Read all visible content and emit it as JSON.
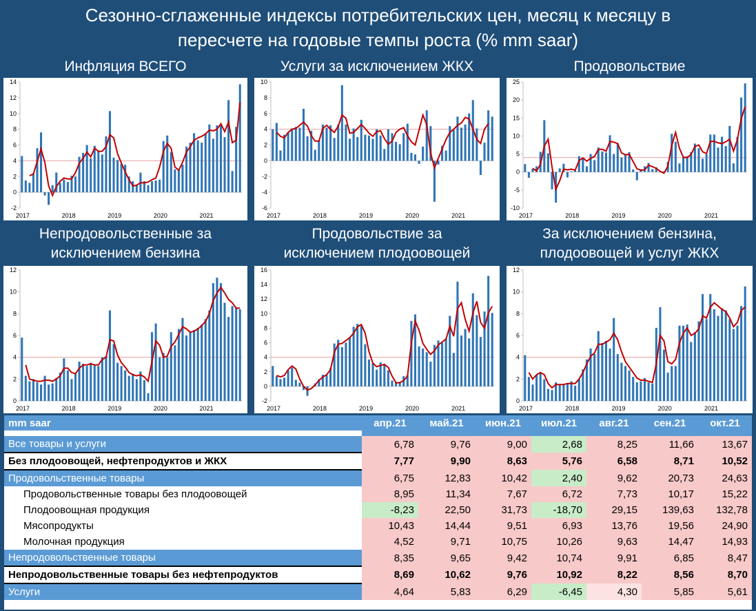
{
  "header": {
    "title_line1": "Сезонно-сглаженные индексы потребительских цен, месяц к месяцу в",
    "title_line2": "пересчете на годовые темпы роста (% mm saar)"
  },
  "chart_data": [
    {
      "type": "bar",
      "title": "Инфляция ВСЕГО",
      "xlabels": [
        "2017",
        "2018",
        "2019",
        "2020",
        "2021"
      ],
      "yticks": [
        -2,
        0,
        2,
        4,
        6,
        8,
        10,
        12,
        14
      ],
      "ylim": [
        -2,
        14
      ],
      "ref_line": 4,
      "series": [
        {
          "values": [
            4.6,
            1.5,
            1.2,
            2.4,
            5.6,
            7.6,
            -0.4,
            -1.6,
            0.9,
            2.5,
            1.2,
            1.6,
            1.3,
            2.1,
            2.0,
            4.5,
            5.0,
            6.0,
            4.3,
            5.9,
            5.3,
            4.8,
            7.1,
            10.3,
            4.4,
            4.1,
            3.6,
            3.5,
            2.0,
            1.4,
            0.9,
            2.5,
            1.4,
            0.9,
            1.4,
            1.5,
            1.6,
            6.5,
            7.2,
            5.1,
            2.9,
            2.8,
            3.5,
            5.8,
            6.3,
            7.5,
            6.6,
            6.3,
            7.5,
            8.6,
            6.8,
            8.5,
            8.6,
            7.0,
            11.7,
            2.7,
            8.3,
            13.7
          ]
        },
        {
          "values": [
            null,
            null,
            2.1,
            2.3,
            3.9,
            5.5,
            3.8,
            0.8,
            -0.4,
            0.7,
            1.4,
            1.8,
            1.7,
            1.7,
            2.5,
            3.7,
            4.3,
            5.1,
            4.5,
            5.6,
            5.2,
            5.2,
            5.8,
            7.3,
            6.9,
            4.9,
            3.7,
            2.6,
            1.6,
            0.8,
            0.9,
            1.2,
            1.2,
            1.3,
            1.6,
            1.8,
            3.2,
            5.2,
            6.2,
            5.6,
            3.2,
            2.8,
            3.8,
            5.1,
            5.8,
            6.6,
            6.9,
            7.1,
            7.4,
            7.9,
            7.8,
            8.0,
            8.7,
            7.7,
            8.9,
            6.3,
            6.6,
            11.4
          ]
        }
      ]
    },
    {
      "type": "bar",
      "title": "Услуги за исключением ЖКХ",
      "xlabels": [
        "2017",
        "2018",
        "2019",
        "2020",
        "2021"
      ],
      "yticks": [
        -6,
        -4,
        -2,
        0,
        2,
        4,
        6,
        8,
        10
      ],
      "ylim": [
        -6,
        10
      ],
      "ref_line": 4,
      "series": [
        {
          "values": [
            4.0,
            4.8,
            1.3,
            3.3,
            3.6,
            4.1,
            4.3,
            4.2,
            6.6,
            3.1,
            3.8,
            1.4,
            2.6,
            4.6,
            4.2,
            4.5,
            2.9,
            4.6,
            9.6,
            4.6,
            2.8,
            4.1,
            3.0,
            5.2,
            3.3,
            3.2,
            2.8,
            4.0,
            3.2,
            1.5,
            4.0,
            3.5,
            2.4,
            2.1,
            3.5,
            4.7,
            1.0,
            0.8,
            -0.4,
            1.8,
            6.4,
            4.4,
            -5.2,
            -0.5,
            1.9,
            1.3,
            4.4,
            3.9,
            5.6,
            4.2,
            4.6,
            6.0,
            7.7,
            4.1,
            -1.8,
            2.3,
            6.4,
            5.6
          ]
        },
        {
          "values": [
            null,
            3.6,
            3.1,
            2.9,
            3.6,
            4.0,
            4.1,
            4.5,
            4.9,
            4.4,
            3.2,
            2.5,
            2.5,
            4.1,
            4.5,
            4.0,
            3.6,
            4.4,
            5.8,
            5.4,
            3.5,
            3.6,
            4.1,
            4.6,
            4.1,
            3.5,
            3.1,
            3.7,
            3.8,
            2.8,
            2.1,
            2.5,
            3.6,
            4.0,
            4.2,
            3.2,
            2.4,
            2.0,
            3.9,
            5.8,
            4.6,
            1.0,
            -0.9,
            0.3,
            1.5,
            2.7,
            3.6,
            4.0,
            4.5,
            4.8,
            5.5,
            5.3,
            4.0,
            2.7,
            2.2,
            4.0,
            4.7
          ]
        }
      ]
    },
    {
      "type": "bar",
      "title": "Продовольствие",
      "xlabels": [
        "2017",
        "2018",
        "2019",
        "2020",
        "2021"
      ],
      "yticks": [
        -10,
        -5,
        0,
        5,
        10,
        15,
        20,
        25
      ],
      "ylim": [
        -10,
        25
      ],
      "ref_line": 4,
      "series": [
        {
          "values": [
            2.2,
            -1.6,
            0.9,
            1.6,
            5.6,
            14.4,
            5.2,
            -4.8,
            -8.5,
            1.0,
            2.3,
            -1.5,
            0.2,
            0.4,
            4.4,
            3.8,
            1.6,
            5.0,
            3.3,
            6.8,
            5.7,
            5.4,
            10.2,
            5.0,
            8.0,
            4.0,
            5.0,
            5.5,
            0.7,
            -2.3,
            0.8,
            1.6,
            2.5,
            0.8,
            1.3,
            0.2,
            0.2,
            2.8,
            10.6,
            8.4,
            2.4,
            4.1,
            4.4,
            5.5,
            7.9,
            6.6,
            3.7,
            4.9,
            10.4,
            10.4,
            6.8,
            9.8,
            7.2,
            12.8,
            2.4,
            9.7,
            20.7,
            24.6
          ]
        },
        {
          "values": [
            null,
            null,
            1.0,
            0.3,
            2.1,
            7.2,
            9.1,
            1.4,
            -4.8,
            -2.4,
            0.8,
            0.6,
            0.8,
            0.5,
            3.2,
            3.9,
            3.0,
            3.8,
            4.3,
            6.3,
            6.3,
            5.8,
            8.5,
            8.3,
            7.9,
            5.3,
            4.8,
            4.9,
            2.9,
            0.9,
            0.5,
            0.6,
            1.9,
            1.5,
            1.0,
            0.2,
            -0.3,
            1.6,
            7.3,
            11.0,
            6.6,
            4.1,
            4.0,
            4.9,
            7.1,
            7.5,
            5.6,
            5.1,
            8.5,
            8.5,
            8.1,
            7.9,
            8.4,
            9.1,
            5.8,
            9.0,
            14.8,
            18.1
          ]
        }
      ]
    },
    {
      "type": "bar",
      "title": "Непродовольственные за исключением бензина",
      "xlabels": [
        "2017",
        "2018",
        "2019",
        "2020",
        "2021"
      ],
      "yticks": [
        0,
        2,
        4,
        6,
        8,
        10,
        12
      ],
      "ylim": [
        0,
        12
      ],
      "ref_line": 4,
      "series": [
        {
          "values": [
            5.8,
            2.3,
            1.8,
            2.0,
            1.7,
            1.5,
            2.3,
            1.5,
            1.6,
            2.1,
            2.6,
            3.9,
            2.8,
            2.0,
            2.5,
            3.6,
            3.4,
            3.2,
            3.5,
            3.3,
            3.2,
            4.0,
            4.1,
            8.3,
            5.2,
            3.5,
            3.2,
            2.8,
            2.3,
            2.5,
            2.0,
            2.7,
            1.9,
            0.7,
            6.3,
            7.1,
            4.0,
            4.4,
            4.0,
            6.3,
            5.1,
            6.6,
            7.6,
            6.0,
            6.3,
            6.5,
            6.7,
            7.0,
            7.5,
            8.3,
            10.8,
            11.3,
            10.8,
            9.0,
            7.7,
            8.7,
            8.6,
            8.4
          ]
        },
        {
          "values": [
            null,
            3.3,
            2.0,
            1.9,
            1.8,
            1.8,
            1.9,
            1.9,
            1.8,
            2.0,
            2.3,
            3.0,
            3.0,
            2.6,
            2.5,
            3.0,
            3.3,
            3.3,
            3.4,
            3.3,
            3.3,
            3.8,
            4.0,
            5.6,
            5.5,
            4.2,
            3.5,
            3.1,
            2.6,
            2.4,
            2.3,
            2.4,
            2.2,
            1.8,
            3.6,
            5.5,
            5.1,
            4.0,
            4.1,
            5.0,
            5.4,
            6.1,
            6.8,
            6.6,
            6.3,
            6.4,
            6.6,
            6.9,
            7.3,
            8.0,
            9.2,
            9.9,
            10.4,
            9.9,
            9.3,
            9.0,
            8.5,
            8.5
          ]
        }
      ]
    },
    {
      "type": "bar",
      "title": "Продовольствие за исключением плодоовощей",
      "xlabels": [
        "2017",
        "2018",
        "2019",
        "2020",
        "2021"
      ],
      "yticks": [
        -2,
        0,
        2,
        4,
        6,
        8,
        10,
        12,
        14,
        16
      ],
      "ylim": [
        -2,
        16
      ],
      "ref_line": 4,
      "series": [
        {
          "values": [
            2.8,
            1.4,
            1.0,
            1.2,
            2.2,
            2.6,
            0.9,
            0.5,
            -0.5,
            -1.3,
            0.0,
            0.4,
            1.0,
            1.6,
            1.6,
            2.5,
            5.9,
            6.4,
            5.4,
            6.0,
            6.8,
            8.2,
            8.6,
            8.3,
            5.8,
            3.7,
            3.2,
            2.3,
            3.3,
            3.1,
            2.2,
            0.8,
            0.6,
            0.6,
            1.4,
            1.5,
            9.0,
            9.9,
            5.5,
            5.2,
            4.7,
            3.4,
            5.7,
            6.3,
            6.0,
            6.6,
            9.7,
            4.6,
            14.4,
            7.0,
            7.9,
            6.6,
            12.8,
            9.8,
            6.8,
            10.3,
            15.2,
            10.1
          ]
        },
        {
          "values": [
            null,
            1.5,
            1.3,
            1.5,
            2.3,
            2.8,
            2.4,
            1.0,
            0.0,
            -0.5,
            -0.3,
            0.2,
            0.8,
            1.3,
            1.6,
            2.3,
            4.7,
            5.8,
            5.9,
            6.3,
            6.7,
            7.3,
            8.2,
            8.5,
            7.3,
            4.8,
            3.2,
            2.7,
            2.9,
            3.0,
            2.6,
            1.4,
            0.5,
            0.5,
            0.8,
            1.4,
            6.0,
            9.0,
            7.7,
            5.9,
            5.1,
            4.4,
            4.9,
            5.7,
            6.1,
            6.5,
            8.3,
            6.9,
            10.7,
            11.5,
            9.2,
            7.6,
            10.1,
            11.7,
            8.8,
            8.0,
            10.1,
            11.0
          ]
        }
      ]
    },
    {
      "type": "bar",
      "title": "За исключением бензина, плодоовощей и услуг ЖКХ",
      "xlabels": [
        "2017",
        "2018",
        "2019",
        "2020",
        "2021"
      ],
      "yticks": [
        0,
        2,
        4,
        6,
        8,
        10,
        12
      ],
      "ylim": [
        0,
        12
      ],
      "ref_line": 4,
      "series": [
        {
          "values": [
            4.2,
            2.2,
            1.5,
            2.4,
            2.6,
            2.0,
            1.1,
            1.0,
            1.7,
            1.5,
            1.5,
            1.6,
            1.8,
            1.4,
            2.0,
            2.9,
            3.8,
            4.8,
            4.3,
            6.4,
            5.3,
            5.5,
            4.8,
            7.6,
            4.3,
            3.5,
            3.2,
            2.8,
            2.2,
            1.7,
            1.8,
            2.1,
            1.7,
            1.6,
            6.7,
            8.6,
            4.7,
            2.6,
            3.2,
            3.2,
            6.9,
            6.9,
            7.0,
            5.4,
            6.3,
            7.3,
            9.8,
            7.5,
            9.8,
            8.4,
            7.8,
            8.5,
            8.3,
            7.5,
            6.6,
            6.9,
            8.7,
            10.5
          ]
        },
        {
          "values": [
            null,
            2.6,
            2.0,
            2.4,
            2.6,
            2.4,
            1.6,
            1.2,
            1.5,
            1.5,
            1.5,
            1.6,
            1.6,
            1.6,
            2.0,
            2.6,
            3.4,
            4.1,
            4.4,
            5.2,
            5.2,
            5.4,
            5.6,
            6.2,
            5.6,
            4.5,
            3.6,
            3.1,
            2.6,
            2.1,
            1.9,
            1.9,
            1.8,
            1.7,
            3.4,
            6.0,
            5.5,
            3.6,
            3.4,
            3.8,
            5.3,
            6.2,
            6.7,
            6.0,
            6.2,
            6.6,
            7.8,
            7.6,
            8.6,
            9.0,
            8.7,
            8.4,
            8.2,
            7.6,
            6.8,
            7.2,
            8.3,
            8.6
          ]
        }
      ]
    }
  ],
  "table": {
    "corner_label": "mm saar",
    "columns": [
      "апр.21",
      "май.21",
      "июн.21",
      "июл.21",
      "авг.21",
      "сен.21",
      "окт.21"
    ],
    "rows": [
      {
        "label": "Все товары и услуги",
        "style": "band",
        "values": [
          "6,78",
          "9,76",
          "9,00",
          "2,68",
          "8,25",
          "11,66",
          "13,67"
        ],
        "colors": [
          "red",
          "red",
          "red",
          "green",
          "red",
          "red",
          "red"
        ]
      },
      {
        "label": "Без плодоовощей, нефтепродуктов и ЖКХ",
        "style": "bold",
        "values": [
          "7,77",
          "9,90",
          "8,63",
          "5,76",
          "6,58",
          "8,71",
          "10,52"
        ],
        "colors": [
          "red",
          "red",
          "red",
          "red",
          "red",
          "red",
          "red"
        ]
      },
      {
        "label": "Продовольственные товары",
        "style": "band",
        "values": [
          "6,75",
          "12,83",
          "10,42",
          "2,40",
          "9,62",
          "20,73",
          "24,63"
        ],
        "colors": [
          "red",
          "red",
          "red",
          "green",
          "red",
          "red",
          "red"
        ]
      },
      {
        "label": "Продовольственные товары без плодоовощей",
        "style": "plain",
        "values": [
          "8,95",
          "11,34",
          "7,67",
          "6,72",
          "7,73",
          "10,17",
          "15,22"
        ],
        "colors": [
          "red",
          "red",
          "red",
          "red",
          "red",
          "red",
          "red"
        ]
      },
      {
        "label": "Плодоовощная продукция",
        "style": "plain",
        "values": [
          "-8,23",
          "22,50",
          "31,73",
          "-18,70",
          "29,15",
          "139,63",
          "132,78"
        ],
        "colors": [
          "green",
          "red",
          "red",
          "green",
          "red",
          "red",
          "red"
        ]
      },
      {
        "label": "Мясопродукты",
        "style": "plain",
        "values": [
          "10,43",
          "14,44",
          "9,51",
          "6,93",
          "13,76",
          "19,56",
          "24,90"
        ],
        "colors": [
          "red",
          "red",
          "red",
          "red",
          "red",
          "red",
          "red"
        ]
      },
      {
        "label": "Молочная продукция",
        "style": "plain",
        "values": [
          "4,52",
          "9,71",
          "10,75",
          "10,26",
          "9,63",
          "14,47",
          "14,93"
        ],
        "colors": [
          "red",
          "red",
          "red",
          "red",
          "red",
          "red",
          "red"
        ]
      },
      {
        "label": "Непродовольственные товары",
        "style": "band",
        "values": [
          "8,35",
          "9,65",
          "9,42",
          "10,74",
          "9,91",
          "6,85",
          "8,47"
        ],
        "colors": [
          "red",
          "red",
          "red",
          "red",
          "red",
          "red",
          "red"
        ]
      },
      {
        "label": "Непродовольственные товары без нефтепродуктов",
        "style": "bold",
        "values": [
          "8,69",
          "10,62",
          "9,76",
          "10,92",
          "8,22",
          "8,56",
          "8,70"
        ],
        "colors": [
          "red",
          "red",
          "red",
          "red",
          "red",
          "red",
          "red"
        ]
      },
      {
        "label": "Услуги",
        "style": "band",
        "values": [
          "4,64",
          "5,83",
          "6,29",
          "-6,45",
          "4,30",
          "5,85",
          "5,61"
        ],
        "colors": [
          "red",
          "red",
          "red",
          "green",
          "lightred",
          "red",
          "red"
        ]
      }
    ]
  },
  "colors": {
    "background": "#1f4e79",
    "band": "#5b9bd5",
    "bar": "#2e75b6",
    "line": "#c00000",
    "ref_line": "#e8a0a0",
    "cell_red": "#f8c9c9",
    "cell_green": "#c8ecc8"
  }
}
